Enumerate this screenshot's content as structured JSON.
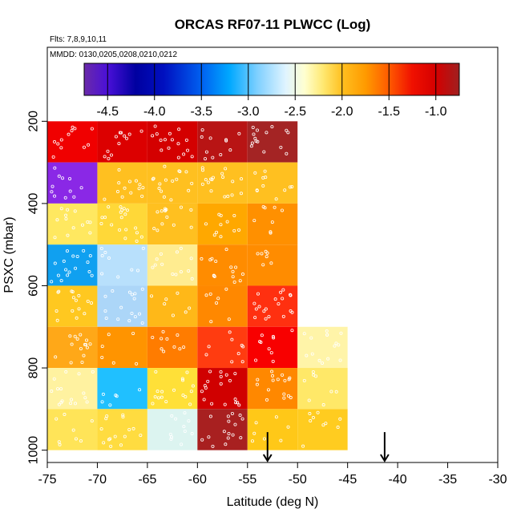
{
  "chart_data": {
    "type": "heatmap",
    "title": "ORCAS RF07-11 PLWCC (Log)",
    "subtitle_flights": "Flts: 7,8,9,10,11",
    "subtitle_dates": "MMDD: 0130,0205,0208,0210,0212",
    "xlabel": "Latitude (deg N)",
    "ylabel": "PSXC (mbar)",
    "xlim": [
      -75,
      -30
    ],
    "ylim": [
      1030,
      20
    ],
    "x_ticks": [
      -75,
      -70,
      -65,
      -60,
      -55,
      -50,
      -45,
      -40,
      -35,
      -30
    ],
    "x_tick_labels": [
      "-75",
      "-70",
      "-65",
      "-60",
      "-55",
      "-50",
      "-45",
      "-40",
      "-35",
      "-30"
    ],
    "y_ticks": [
      200,
      400,
      600,
      800,
      1000
    ],
    "y_tick_labels": [
      "200",
      "400",
      "600",
      "800",
      "1000"
    ],
    "colorbar": {
      "range": [
        -4.75,
        -0.75
      ],
      "ticks": [
        -4.5,
        -4.0,
        -3.5,
        -3.0,
        -2.5,
        -2.0,
        -1.5,
        -1.0
      ],
      "tick_labels": [
        "-4.5",
        "-4.0",
        "-3.5",
        "-3.0",
        "-2.5",
        "-2.0",
        "-1.5",
        "-1.0"
      ],
      "stops": [
        {
          "v": -4.75,
          "c": "#6a2aa8"
        },
        {
          "v": -4.5,
          "c": "#4a10d8"
        },
        {
          "v": -4.2,
          "c": "#0000a0"
        },
        {
          "v": -3.9,
          "c": "#0010c0"
        },
        {
          "v": -3.5,
          "c": "#0060f0"
        },
        {
          "v": -3.2,
          "c": "#00a8ff"
        },
        {
          "v": -2.9,
          "c": "#80d0ff"
        },
        {
          "v": -2.6,
          "c": "#e0f4ff"
        },
        {
          "v": -2.4,
          "c": "#ffffd0"
        },
        {
          "v": -2.2,
          "c": "#ffe870"
        },
        {
          "v": -2.0,
          "c": "#ffc020"
        },
        {
          "v": -1.75,
          "c": "#ff9a00"
        },
        {
          "v": -1.5,
          "c": "#ff5a00"
        },
        {
          "v": -1.25,
          "c": "#f01000"
        },
        {
          "v": -1.0,
          "c": "#d40000"
        },
        {
          "v": -0.75,
          "c": "#a02020"
        }
      ]
    },
    "bin_edges_x": [
      -75,
      -70,
      -65,
      -60,
      -55,
      -50,
      -45
    ],
    "bin_edges_y": [
      200,
      300,
      400,
      500,
      600,
      700,
      800,
      900,
      1000
    ],
    "cells": [
      {
        "x0": -75,
        "x1": -70,
        "y0": 200,
        "y1": 300,
        "value": -1.15,
        "color": "#f00000"
      },
      {
        "x0": -70,
        "x1": -65,
        "y0": 200,
        "y1": 300,
        "value": -1.05,
        "color": "#dc0000"
      },
      {
        "x0": -65,
        "x1": -60,
        "y0": 200,
        "y1": 300,
        "value": -1.0,
        "color": "#d40000"
      },
      {
        "x0": -60,
        "x1": -55,
        "y0": 200,
        "y1": 300,
        "value": -0.9,
        "color": "#b81414"
      },
      {
        "x0": -55,
        "x1": -50,
        "y0": 200,
        "y1": 300,
        "value": -0.8,
        "color": "#a42424"
      },
      {
        "x0": -75,
        "x1": -70,
        "y0": 300,
        "y1": 400,
        "value": -4.6,
        "color": "#8a28e6"
      },
      {
        "x0": -70,
        "x1": -65,
        "y0": 300,
        "y1": 400,
        "value": -2.0,
        "color": "#ffc020"
      },
      {
        "x0": -65,
        "x1": -60,
        "y0": 300,
        "y1": 400,
        "value": -2.0,
        "color": "#ffc020"
      },
      {
        "x0": -60,
        "x1": -55,
        "y0": 300,
        "y1": 400,
        "value": -2.0,
        "color": "#ffc020"
      },
      {
        "x0": -55,
        "x1": -50,
        "y0": 300,
        "y1": 400,
        "value": -2.0,
        "color": "#ffc020"
      },
      {
        "x0": -75,
        "x1": -70,
        "y0": 400,
        "y1": 500,
        "value": -2.2,
        "color": "#ffe860"
      },
      {
        "x0": -70,
        "x1": -65,
        "y0": 400,
        "y1": 500,
        "value": -2.1,
        "color": "#ffd838"
      },
      {
        "x0": -65,
        "x1": -60,
        "y0": 400,
        "y1": 500,
        "value": -2.0,
        "color": "#ffc020"
      },
      {
        "x0": -60,
        "x1": -55,
        "y0": 400,
        "y1": 500,
        "value": -1.8,
        "color": "#ffa800"
      },
      {
        "x0": -55,
        "x1": -50,
        "y0": 400,
        "y1": 500,
        "value": -1.7,
        "color": "#ff9000"
      },
      {
        "x0": -75,
        "x1": -70,
        "y0": 500,
        "y1": 600,
        "value": -3.3,
        "color": "#10a0f0"
      },
      {
        "x0": -70,
        "x1": -65,
        "y0": 500,
        "y1": 600,
        "value": -2.8,
        "color": "#b8e0fc"
      },
      {
        "x0": -65,
        "x1": -60,
        "y0": 500,
        "y1": 600,
        "value": -2.3,
        "color": "#ffec90"
      },
      {
        "x0": -60,
        "x1": -55,
        "y0": 500,
        "y1": 600,
        "value": -1.7,
        "color": "#ff8c00"
      },
      {
        "x0": -55,
        "x1": -50,
        "y0": 500,
        "y1": 600,
        "value": -1.7,
        "color": "#ff8c00"
      },
      {
        "x0": -75,
        "x1": -70,
        "y0": 600,
        "y1": 700,
        "value": -2.0,
        "color": "#ffc820"
      },
      {
        "x0": -70,
        "x1": -65,
        "y0": 600,
        "y1": 700,
        "value": -2.8,
        "color": "#acd6f8"
      },
      {
        "x0": -65,
        "x1": -60,
        "y0": 600,
        "y1": 700,
        "value": -2.0,
        "color": "#ffb818"
      },
      {
        "x0": -60,
        "x1": -55,
        "y0": 600,
        "y1": 700,
        "value": -1.7,
        "color": "#ff8800"
      },
      {
        "x0": -55,
        "x1": -50,
        "y0": 600,
        "y1": 700,
        "value": -1.35,
        "color": "#ff3010"
      },
      {
        "x0": -75,
        "x1": -70,
        "y0": 700,
        "y1": 800,
        "value": -1.9,
        "color": "#ffa818"
      },
      {
        "x0": -70,
        "x1": -65,
        "y0": 700,
        "y1": 800,
        "value": -1.75,
        "color": "#ff9400"
      },
      {
        "x0": -65,
        "x1": -60,
        "y0": 700,
        "y1": 800,
        "value": -1.65,
        "color": "#ff7c00"
      },
      {
        "x0": -60,
        "x1": -55,
        "y0": 700,
        "y1": 800,
        "value": -1.4,
        "color": "#ff3c10"
      },
      {
        "x0": -55,
        "x1": -50,
        "y0": 700,
        "y1": 800,
        "value": -1.2,
        "color": "#f80000"
      },
      {
        "x0": -50,
        "x1": -45,
        "y0": 700,
        "y1": 800,
        "value": -2.35,
        "color": "#fff4a8"
      },
      {
        "x0": -75,
        "x1": -70,
        "y0": 800,
        "y1": 900,
        "value": -2.35,
        "color": "#fff2a0"
      },
      {
        "x0": -70,
        "x1": -65,
        "y0": 800,
        "y1": 900,
        "value": -3.2,
        "color": "#20c0ff"
      },
      {
        "x0": -65,
        "x1": -60,
        "y0": 800,
        "y1": 900,
        "value": -2.1,
        "color": "#ffe038"
      },
      {
        "x0": -60,
        "x1": -55,
        "y0": 800,
        "y1": 900,
        "value": -1.0,
        "color": "#d00000"
      },
      {
        "x0": -55,
        "x1": -50,
        "y0": 800,
        "y1": 900,
        "value": -1.7,
        "color": "#ff8800"
      },
      {
        "x0": -50,
        "x1": -45,
        "y0": 800,
        "y1": 900,
        "value": -2.2,
        "color": "#ffe868"
      },
      {
        "x0": -75,
        "x1": -70,
        "y0": 900,
        "y1": 1000,
        "value": -2.15,
        "color": "#ffe458"
      },
      {
        "x0": -70,
        "x1": -65,
        "y0": 900,
        "y1": 1000,
        "value": -2.1,
        "color": "#ffdc40"
      },
      {
        "x0": -65,
        "x1": -60,
        "y0": 900,
        "y1": 1000,
        "value": -2.6,
        "color": "#dcf4f0"
      },
      {
        "x0": -60,
        "x1": -55,
        "y0": 900,
        "y1": 1000,
        "value": -0.85,
        "color": "#a82020"
      },
      {
        "x0": -55,
        "x1": -50,
        "y0": 900,
        "y1": 1000,
        "value": -2.0,
        "color": "#ffc818"
      },
      {
        "x0": -50,
        "x1": -45,
        "y0": 900,
        "y1": 1000,
        "value": -2.0,
        "color": "#ffcc20"
      }
    ],
    "sample_point_seed": 7,
    "sample_point_color": "#ffffff",
    "arrow_markers": [
      {
        "latitude": -53.0,
        "pressure": 960
      },
      {
        "latitude": -41.3,
        "pressure": 960
      }
    ],
    "arrow_color": "#000000"
  }
}
